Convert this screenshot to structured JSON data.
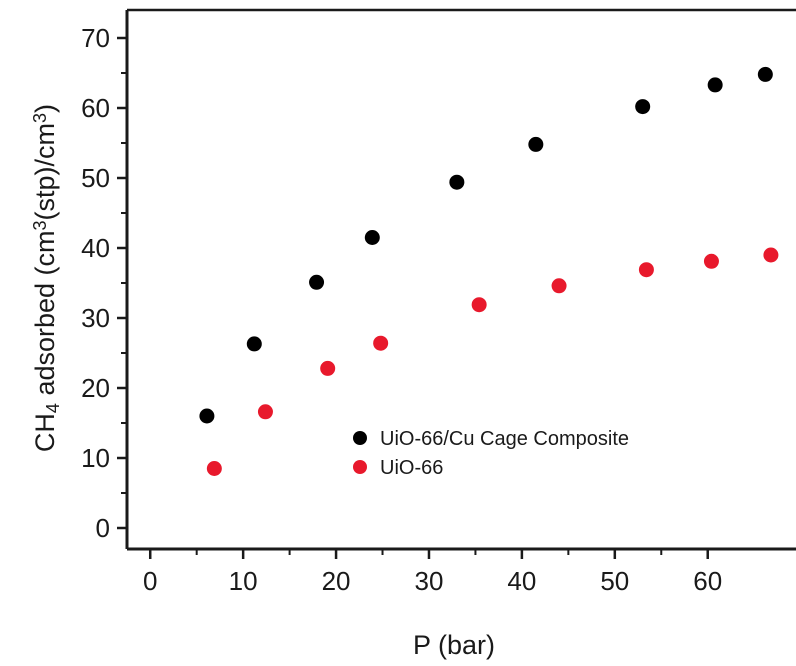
{
  "chart_data": {
    "type": "scatter",
    "xlabel": "P (bar)",
    "ylabel": {
      "parts": [
        "CH",
        "4",
        " adsorbed (cm",
        "3",
        "(stp)/cm",
        "3",
        ")"
      ]
    },
    "xlim": [
      -2.5,
      69.5
    ],
    "ylim": [
      -3,
      74
    ],
    "xticks": [
      0,
      10,
      20,
      30,
      40,
      50,
      60
    ],
    "yticks": [
      0,
      10,
      20,
      30,
      40,
      50,
      60,
      70
    ],
    "legend_position": "center-right",
    "grid": false,
    "series": [
      {
        "name": "UiO-66/Cu Cage Composite",
        "color": "#000000",
        "points": [
          [
            6.1,
            16.0
          ],
          [
            11.2,
            26.3
          ],
          [
            17.9,
            35.1
          ],
          [
            23.9,
            41.5
          ],
          [
            33.0,
            49.4
          ],
          [
            41.5,
            54.8
          ],
          [
            53.0,
            60.2
          ],
          [
            60.8,
            63.3
          ],
          [
            66.2,
            64.8
          ]
        ]
      },
      {
        "name": "UiO-66",
        "color": "#e8192c",
        "points": [
          [
            6.9,
            8.5
          ],
          [
            12.4,
            16.6
          ],
          [
            19.1,
            22.8
          ],
          [
            24.8,
            26.4
          ],
          [
            35.4,
            31.9
          ],
          [
            44.0,
            34.6
          ],
          [
            53.4,
            36.9
          ],
          [
            60.4,
            38.1
          ],
          [
            66.8,
            39.0
          ]
        ]
      }
    ]
  }
}
